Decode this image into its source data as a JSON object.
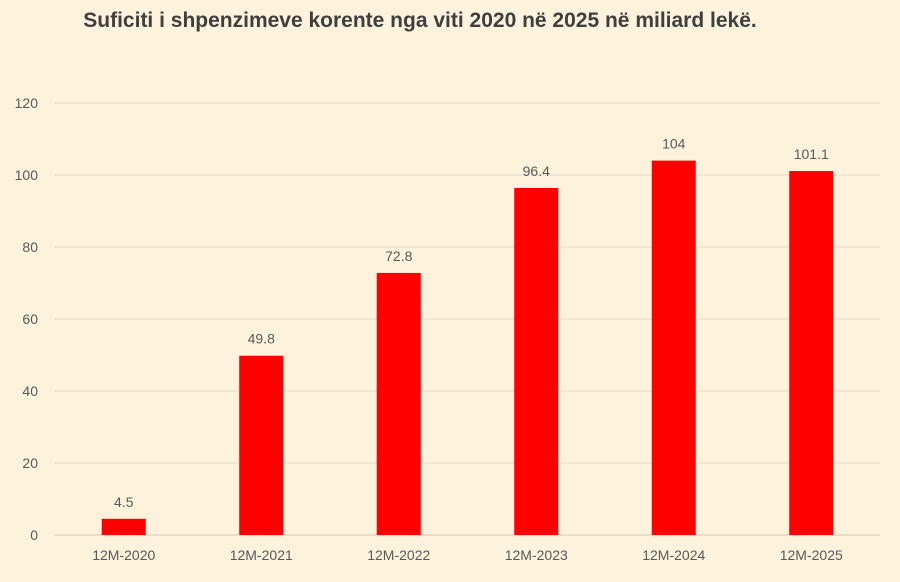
{
  "chart_data": {
    "type": "bar",
    "title": "Suficiti i shpenzimeve korente nga viti 2020 në 2025 në miliard lekë.",
    "categories": [
      "12M-2020",
      "12M-2021",
      "12M-2022",
      "12M-2023",
      "12M-2024",
      "12M-2025"
    ],
    "values": [
      4.5,
      49.8,
      72.8,
      96.4,
      104,
      101.1
    ],
    "data_labels": [
      "4.5",
      "49.8",
      "72.8",
      "96.4",
      "104",
      "101.1"
    ],
    "y_ticks": [
      0,
      20,
      40,
      60,
      80,
      100,
      120
    ],
    "ylim": [
      0,
      120
    ],
    "grid": true,
    "legend": "none",
    "bar_color": "#ff0000",
    "background_color": "#fdf3dc",
    "grid_color": "#e3dccb"
  }
}
